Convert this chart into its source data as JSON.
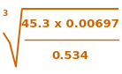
{
  "numerator": "45.3 x 0.00697",
  "denominator": "0.534",
  "root_index": "3",
  "bg_color": "#ffffff",
  "text_color": "#cc6600",
  "figsize": [
    1.38,
    0.84
  ],
  "dpi": 100
}
